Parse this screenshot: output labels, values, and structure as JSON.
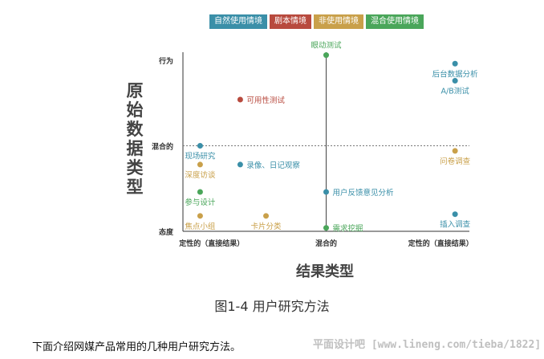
{
  "legend": [
    {
      "label": "自然使用情境",
      "color": "#3a8fa8"
    },
    {
      "label": "剧本情境",
      "color": "#b84a3e"
    },
    {
      "label": "非使用情境",
      "color": "#c9a04a"
    },
    {
      "label": "混合使用情境",
      "color": "#4aa65a"
    }
  ],
  "chart_data": {
    "type": "scatter",
    "title": "",
    "ylabel": "原始数据类型",
    "xlabel": "结果类型",
    "xlim": [
      0,
      10
    ],
    "ylim": [
      0,
      10
    ],
    "x_ticks": [
      {
        "value": 1,
        "label": "定性的（直接结果）"
      },
      {
        "value": 5,
        "label": "混合的"
      },
      {
        "value": 9,
        "label": "定性的（直接结果）"
      }
    ],
    "y_ticks": [
      {
        "value": 10,
        "label": "行为"
      },
      {
        "value": 5,
        "label": "混合的"
      },
      {
        "value": 0,
        "label": "态度"
      }
    ],
    "divider_x": 5,
    "divider_y": 5,
    "points": [
      {
        "label": "眼动测试",
        "x": 5,
        "y": 10.3,
        "category": "混合使用情境",
        "label_pos": "above"
      },
      {
        "label": "后台数据分析",
        "x": 9.5,
        "y": 9.8,
        "category": "自然使用情境",
        "label_pos": "below"
      },
      {
        "label": "A/B测试",
        "x": 9.5,
        "y": 8.8,
        "category": "自然使用情境",
        "label_pos": "below"
      },
      {
        "label": "可用性测试",
        "x": 2,
        "y": 7.7,
        "category": "剧本情境",
        "label_pos": "right"
      },
      {
        "label": "现场研究",
        "x": 0.6,
        "y": 5,
        "category": "自然使用情境",
        "label_pos": "below"
      },
      {
        "label": "问卷调查",
        "x": 9.5,
        "y": 4.7,
        "category": "非使用情境",
        "label_pos": "below"
      },
      {
        "label": "深度访谈",
        "x": 0.6,
        "y": 3.9,
        "category": "非使用情境",
        "label_pos": "below"
      },
      {
        "label": "录像、日记观察",
        "x": 2,
        "y": 3.9,
        "category": "自然使用情境",
        "label_pos": "right"
      },
      {
        "label": "参与设计",
        "x": 0.6,
        "y": 2.3,
        "category": "混合使用情境",
        "label_pos": "below"
      },
      {
        "label": "用户反馈意见分析",
        "x": 5,
        "y": 2.3,
        "category": "自然使用情境",
        "label_pos": "right"
      },
      {
        "label": "焦点小组",
        "x": 0.6,
        "y": 0.9,
        "category": "非使用情境",
        "label_pos": "below"
      },
      {
        "label": "卡片分类",
        "x": 2.9,
        "y": 0.9,
        "category": "非使用情境",
        "label_pos": "below"
      },
      {
        "label": "插入调查",
        "x": 9.5,
        "y": 1.0,
        "category": "自然使用情境",
        "label_pos": "below"
      },
      {
        "label": "需求挖掘",
        "x": 5,
        "y": 0.2,
        "category": "混合使用情境",
        "label_pos": "right"
      }
    ]
  },
  "caption": "图1-4    用户研究方法",
  "body_text": "下面介绍网媒产品常用的几种用户研究方法。",
  "watermark": "平面设计吧 [www.lineng.com/tieba/1822]"
}
